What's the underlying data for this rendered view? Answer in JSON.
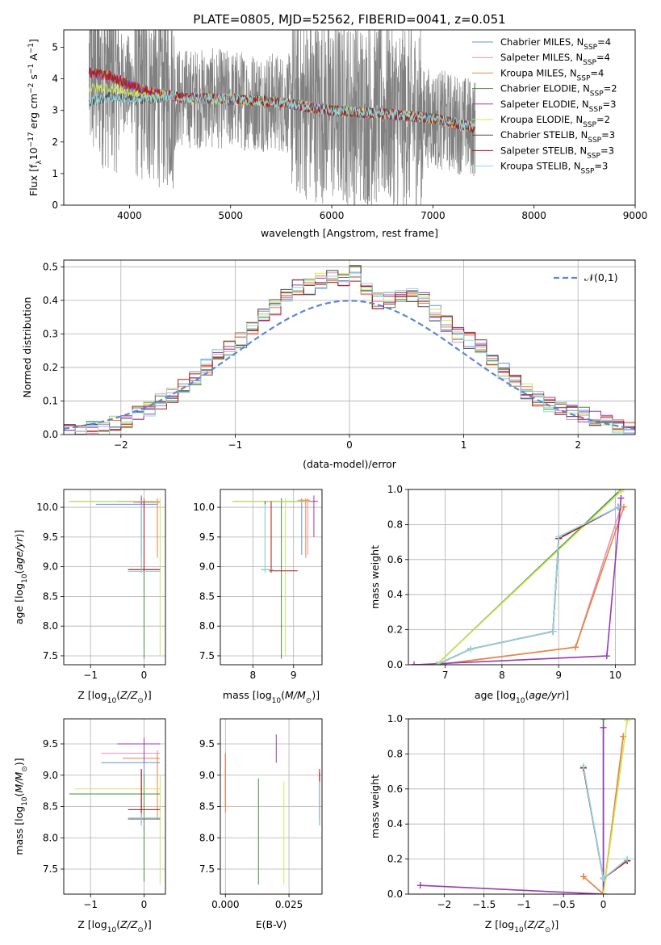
{
  "figure_title": "PLATE=0805, MJD=52562, FIBERID=0041, z=0.051",
  "models": [
    {
      "name": "Chabrier MILES",
      "nssp": "4",
      "color": "#6a8fd8"
    },
    {
      "name": "Salpeter MILES",
      "nssp": "4",
      "color": "#e58fc0"
    },
    {
      "name": "Kroupa MILES",
      "nssp": "4",
      "color": "#e8853a"
    },
    {
      "name": "Chabrier ELODIE",
      "nssp": "2",
      "color": "#4a8a4a"
    },
    {
      "name": "Salpeter ELODIE",
      "nssp": "3",
      "color": "#9a3ab0"
    },
    {
      "name": "Kroupa ELODIE",
      "nssp": "2",
      "color": "#cde85a"
    },
    {
      "name": "Chabrier STELIB",
      "nssp": "3",
      "color": "#5a4a4a"
    },
    {
      "name": "Salpeter STELIB",
      "nssp": "3",
      "color": "#b01a1a"
    },
    {
      "name": "Kroupa STELIB",
      "nssp": "3",
      "color": "#8fd8e0"
    }
  ],
  "colors": {
    "data": "#808080",
    "gauss": "#5b86d6",
    "grid": "#b0b0b0"
  },
  "chart_data": [
    {
      "id": "spectrum",
      "type": "line",
      "xlabel": "wavelength [Angstrom, rest frame]",
      "ylabel": "Flux [f_λ10^-17 erg cm^-2 s^-1 A^-1]",
      "xlim": [
        3350,
        9000
      ],
      "ylim": [
        0,
        5.55
      ],
      "xticks": [
        4000,
        5000,
        6000,
        7000,
        8000,
        9000
      ],
      "yticks": [
        0,
        1,
        2,
        3,
        4,
        5
      ],
      "data_range": [
        3600,
        7420
      ],
      "model_range": [
        3600,
        7420
      ],
      "model_continuum": {
        "x": [
          3600,
          3800,
          4000,
          4200,
          4500,
          5000,
          5500,
          6000,
          6500,
          7000,
          7420
        ],
        "y": [
          4.2,
          4.1,
          3.8,
          3.6,
          3.4,
          3.35,
          3.25,
          3.0,
          2.9,
          2.75,
          2.45
        ]
      },
      "legend": "top-right"
    },
    {
      "id": "residuals",
      "type": "histogram",
      "xlabel": "(data-model)/error",
      "ylabel": "Normed distribution",
      "xlim": [
        -2.5,
        2.5
      ],
      "ylim": [
        0,
        0.52
      ],
      "xticks": [
        -2,
        -1,
        0,
        1,
        2
      ],
      "yticks": [
        0,
        0.1,
        0.2,
        0.3,
        0.4,
        0.5
      ],
      "bin_width": 0.1,
      "bins_x": [
        -2.5,
        -2.4,
        -2.3,
        -2.2,
        -2.1,
        -2.0,
        -1.9,
        -1.8,
        -1.7,
        -1.6,
        -1.5,
        -1.4,
        -1.3,
        -1.2,
        -1.1,
        -1.0,
        -0.9,
        -0.8,
        -0.7,
        -0.6,
        -0.5,
        -0.4,
        -0.3,
        -0.2,
        -0.1,
        0.0,
        0.1,
        0.2,
        0.3,
        0.4,
        0.5,
        0.6,
        0.7,
        0.8,
        0.9,
        1.0,
        1.1,
        1.2,
        1.3,
        1.4,
        1.5,
        1.6,
        1.7,
        1.8,
        1.9,
        2.0,
        2.1,
        2.2,
        2.3,
        2.4
      ],
      "bins_y": [
        0.005,
        0.01,
        0.015,
        0.02,
        0.03,
        0.04,
        0.06,
        0.08,
        0.1,
        0.12,
        0.14,
        0.17,
        0.2,
        0.23,
        0.26,
        0.28,
        0.31,
        0.35,
        0.38,
        0.41,
        0.44,
        0.44,
        0.46,
        0.47,
        0.46,
        0.48,
        0.43,
        0.4,
        0.4,
        0.41,
        0.41,
        0.4,
        0.36,
        0.33,
        0.3,
        0.28,
        0.26,
        0.22,
        0.19,
        0.16,
        0.13,
        0.11,
        0.09,
        0.08,
        0.065,
        0.06,
        0.05,
        0.04,
        0.03,
        0.02
      ],
      "gauss_label": "𝒩(0,1)",
      "legend": "top-right"
    },
    {
      "id": "age_Z",
      "type": "errorbar",
      "xlabel": "Z [log10(Z/Z⊙)]",
      "ylabel": "age [log10(age/yr)]",
      "xlim": [
        -1.5,
        0.4
      ],
      "ylim": [
        7.35,
        10.3
      ],
      "xticks": [
        -1,
        0
      ],
      "yticks": [
        7.5,
        8.0,
        8.5,
        9.0,
        9.5,
        10.0
      ],
      "points": [
        {
          "m": 0,
          "x": -0.05,
          "y": 10.05,
          "xe": [
            -0.9,
            0.25
          ],
          "ye": [
            9.2,
            10.15
          ]
        },
        {
          "m": 1,
          "x": 0.25,
          "y": 10.08,
          "xe": [
            -0.2,
            0.3
          ],
          "ye": [
            9.3,
            10.15
          ]
        },
        {
          "m": 2,
          "x": 0.25,
          "y": 10.1,
          "xe": [
            -0.1,
            0.3
          ],
          "ye": [
            9.15,
            10.15
          ]
        },
        {
          "m": 3,
          "x": 0.0,
          "y": 10.1,
          "xe": [
            -1.4,
            0.3
          ],
          "ye": [
            7.45,
            10.15
          ]
        },
        {
          "m": 4,
          "x": -0.05,
          "y": 10.1,
          "xe": [
            -0.5,
            0.2
          ],
          "ye": [
            8.9,
            10.2
          ]
        },
        {
          "m": 5,
          "x": 0.3,
          "y": 10.1,
          "xe": [
            -1.4,
            0.3
          ],
          "ye": [
            7.5,
            10.15
          ]
        },
        {
          "m": 6,
          "x": 0.0,
          "y": 8.95,
          "xe": [
            -0.3,
            0.3
          ],
          "ye": [
            8.9,
            10.1
          ]
        },
        {
          "m": 7,
          "x": 0.0,
          "y": 8.95,
          "xe": [
            -0.3,
            0.3
          ],
          "ye": [
            8.9,
            10.1
          ]
        },
        {
          "m": 8,
          "x": -0.05,
          "y": 8.92,
          "xe": [
            -0.3,
            0.3
          ],
          "ye": [
            8.9,
            10.05
          ]
        }
      ]
    },
    {
      "id": "age_mass",
      "type": "errorbar",
      "xlabel": "mass [log10(M/M⊙)]",
      "ylabel": "",
      "xlim": [
        7.2,
        9.7
      ],
      "ylim": [
        7.35,
        10.3
      ],
      "xticks": [
        8,
        9
      ],
      "yticks": [
        7.5,
        8.0,
        8.5,
        9.0,
        9.5,
        10.0
      ],
      "points": [
        {
          "m": 0,
          "x": 9.2,
          "y": 10.1,
          "xe": [
            8.3,
            9.4
          ],
          "ye": [
            9.2,
            10.15
          ]
        },
        {
          "m": 1,
          "x": 9.35,
          "y": 10.1,
          "xe": [
            9.1,
            9.4
          ],
          "ye": [
            9.2,
            10.15
          ]
        },
        {
          "m": 2,
          "x": 9.3,
          "y": 10.12,
          "xe": [
            9.1,
            9.4
          ],
          "ye": [
            9.15,
            10.15
          ]
        },
        {
          "m": 3,
          "x": 8.7,
          "y": 10.1,
          "xe": [
            7.5,
            9.4
          ],
          "ye": [
            7.45,
            10.15
          ]
        },
        {
          "m": 4,
          "x": 9.5,
          "y": 10.1,
          "xe": [
            9.2,
            9.6
          ],
          "ye": [
            9.5,
            10.2
          ]
        },
        {
          "m": 5,
          "x": 8.8,
          "y": 10.1,
          "xe": [
            7.5,
            9.4
          ],
          "ye": [
            7.5,
            10.15
          ]
        },
        {
          "m": 6,
          "x": 8.3,
          "y": 8.95,
          "xe": [
            8.2,
            8.5
          ],
          "ye": [
            8.9,
            10.1
          ]
        },
        {
          "m": 7,
          "x": 8.45,
          "y": 8.93,
          "xe": [
            8.4,
            9.1
          ],
          "ye": [
            8.9,
            10.1
          ]
        },
        {
          "m": 8,
          "x": 8.3,
          "y": 8.95,
          "xe": [
            8.2,
            8.5
          ],
          "ye": [
            8.9,
            10.05
          ]
        }
      ]
    },
    {
      "id": "weight_age",
      "type": "line",
      "xlabel": "age [log10(age/yr)]",
      "ylabel": "mass weight",
      "xlim": [
        6.35,
        10.35
      ],
      "ylim": [
        0,
        1
      ],
      "xticks": [
        7,
        8,
        9,
        10
      ],
      "yticks": [
        0.0,
        0.2,
        0.4,
        0.6,
        0.8,
        1.0
      ],
      "series": [
        {
          "m": 0,
          "x": [
            6.85,
            7.45,
            8.9,
            9.0,
            10.05
          ],
          "y": [
            0.0,
            0.09,
            0.19,
            0.72,
            0.9
          ]
        },
        {
          "m": 1,
          "x": [
            6.85,
            9.3,
            10.1
          ],
          "y": [
            0.0,
            0.1,
            0.9
          ]
        },
        {
          "m": 2,
          "x": [
            6.85,
            9.3,
            10.15
          ],
          "y": [
            0.0,
            0.1,
            0.9
          ]
        },
        {
          "m": 3,
          "x": [
            6.85,
            10.1
          ],
          "y": [
            0.0,
            1.0
          ]
        },
        {
          "m": 4,
          "x": [
            6.45,
            9.85,
            10.1
          ],
          "y": [
            0.0,
            0.05,
            0.95
          ]
        },
        {
          "m": 5,
          "x": [
            6.85,
            10.1
          ],
          "y": [
            0.0,
            0.99
          ]
        },
        {
          "m": 6,
          "x": [
            6.85,
            7.45,
            8.9,
            9.0,
            10.05
          ],
          "y": [
            0.0,
            0.09,
            0.19,
            0.72,
            0.9
          ]
        },
        {
          "m": 7,
          "x": [
            6.85,
            7.45,
            8.9,
            9.0,
            10.05
          ],
          "y": [
            0.0,
            0.09,
            0.19,
            0.72,
            0.9
          ]
        },
        {
          "m": 8,
          "x": [
            6.85,
            7.45,
            8.9,
            9.0,
            10.05
          ],
          "y": [
            0.0,
            0.09,
            0.19,
            0.73,
            0.9
          ]
        }
      ]
    },
    {
      "id": "mass_Z",
      "type": "errorbar",
      "xlabel": "Z [log10(Z/Z⊙)]",
      "ylabel": "mass [log10(M/M⊙)]",
      "xlim": [
        -1.5,
        0.4
      ],
      "ylim": [
        7.1,
        9.9
      ],
      "xticks": [
        -1,
        0
      ],
      "yticks": [
        7.5,
        8.0,
        8.5,
        9.0,
        9.5
      ],
      "points": [
        {
          "m": 0,
          "x": 0.0,
          "y": 9.2,
          "xe": [
            -0.8,
            0.3
          ],
          "ye": [
            8.9,
            9.3
          ]
        },
        {
          "m": 1,
          "x": 0.25,
          "y": 9.35,
          "xe": [
            -0.8,
            0.3
          ],
          "ye": [
            9.2,
            9.4
          ]
        },
        {
          "m": 2,
          "x": 0.25,
          "y": 9.27,
          "xe": [
            -0.4,
            0.3
          ],
          "ye": [
            8.3,
            9.35
          ]
        },
        {
          "m": 3,
          "x": 0.0,
          "y": 8.7,
          "xe": [
            -1.4,
            0.3
          ],
          "ye": [
            7.3,
            9.0
          ]
        },
        {
          "m": 4,
          "x": 0.0,
          "y": 9.5,
          "xe": [
            -0.5,
            0.3
          ],
          "ye": [
            9.2,
            9.6
          ]
        },
        {
          "m": 5,
          "x": 0.3,
          "y": 8.78,
          "xe": [
            -1.3,
            0.3
          ],
          "ye": [
            7.25,
            9.0
          ]
        },
        {
          "m": 6,
          "x": -0.05,
          "y": 8.3,
          "xe": [
            -0.3,
            0.3
          ],
          "ye": [
            8.2,
            9.1
          ]
        },
        {
          "m": 7,
          "x": -0.05,
          "y": 8.45,
          "xe": [
            -0.3,
            0.3
          ],
          "ye": [
            8.3,
            9.1
          ]
        },
        {
          "m": 8,
          "x": -0.05,
          "y": 8.32,
          "xe": [
            -0.3,
            0.3
          ],
          "ye": [
            8.2,
            8.4
          ]
        }
      ]
    },
    {
      "id": "mass_ebv",
      "type": "errorbar",
      "xlabel": "E(B-V)",
      "ylabel": "",
      "xlim": [
        -0.002,
        0.038
      ],
      "ylim": [
        7.1,
        9.9
      ],
      "xticks": [
        0.0,
        0.025
      ],
      "xticklabels": [
        "0.000",
        "0.025"
      ],
      "yticks": [
        7.5,
        8.0,
        8.5,
        9.0,
        9.5
      ],
      "points": [
        {
          "m": 0,
          "x": 0.0,
          "y": 9.0,
          "ye": [
            8.5,
            9.35
          ]
        },
        {
          "m": 1,
          "x": 0.0,
          "y": 9.0,
          "ye": [
            8.6,
            9.3
          ]
        },
        {
          "m": 2,
          "x": 0.0,
          "y": 9.0,
          "ye": [
            8.4,
            9.35
          ]
        },
        {
          "m": 3,
          "x": 0.013,
          "y": 8.5,
          "ye": [
            7.25,
            8.95
          ]
        },
        {
          "m": 4,
          "x": 0.02,
          "y": 9.45,
          "ye": [
            9.2,
            9.65
          ]
        },
        {
          "m": 5,
          "x": 0.023,
          "y": 8.5,
          "ye": [
            7.25,
            8.9
          ]
        },
        {
          "m": 6,
          "x": 0.037,
          "y": 8.7,
          "ye": [
            8.2,
            9.05
          ]
        },
        {
          "m": 7,
          "x": 0.037,
          "y": 8.8,
          "ye": [
            8.3,
            9.1
          ]
        },
        {
          "m": 8,
          "x": 0.037,
          "y": 8.6,
          "ye": [
            8.2,
            8.9
          ]
        }
      ]
    },
    {
      "id": "weight_Z",
      "type": "line",
      "xlabel": "Z [log10(Z/Z⊙)]",
      "ylabel": "mass weight",
      "xlim": [
        -2.45,
        0.4
      ],
      "ylim": [
        0,
        1
      ],
      "xticks": [
        -2.0,
        -1.5,
        -1.0,
        -0.5,
        0.0
      ],
      "yticks": [
        0.0,
        0.2,
        0.4,
        0.6,
        0.8,
        1.0
      ],
      "series": [
        {
          "m": 0,
          "x": [
            -0.25,
            0.0,
            0.3
          ],
          "y": [
            0.72,
            0.09,
            0.19
          ]
        },
        {
          "m": 1,
          "x": [
            -0.25,
            0.0,
            0.25
          ],
          "y": [
            0.1,
            0.0,
            0.9
          ]
        },
        {
          "m": 2,
          "x": [
            -0.25,
            0.0,
            0.25
          ],
          "y": [
            0.1,
            0.0,
            0.9
          ]
        },
        {
          "m": 3,
          "x": [
            0.0,
            0.0
          ],
          "y": [
            0.0,
            1.0
          ]
        },
        {
          "m": 4,
          "x": [
            -2.3,
            0.0,
            0.0
          ],
          "y": [
            0.05,
            0.0,
            0.95
          ]
        },
        {
          "m": 5,
          "x": [
            0.0,
            0.3
          ],
          "y": [
            0.0,
            0.99
          ]
        },
        {
          "m": 6,
          "x": [
            -0.25,
            0.0,
            0.3
          ],
          "y": [
            0.72,
            0.09,
            0.19
          ]
        },
        {
          "m": 7,
          "x": [
            -0.25,
            0.0,
            0.3
          ],
          "y": [
            0.72,
            0.09,
            0.19
          ]
        },
        {
          "m": 8,
          "x": [
            -0.25,
            0.0,
            0.3
          ],
          "y": [
            0.73,
            0.09,
            0.2
          ]
        }
      ]
    }
  ]
}
